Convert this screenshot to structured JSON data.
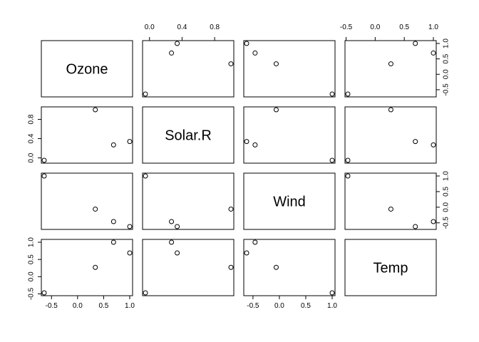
{
  "chart_data": {
    "type": "scatter-matrix",
    "variables": [
      "Ozone",
      "Solar.R",
      "Wind",
      "Temp"
    ],
    "observations": [
      {
        "Ozone": -0.64,
        "Solar.R": -0.05,
        "Wind": 1.0,
        "Temp": -0.47
      },
      {
        "Ozone": 0.34,
        "Solar.R": 1.0,
        "Wind": -0.06,
        "Temp": 0.27
      },
      {
        "Ozone": 0.69,
        "Solar.R": 0.27,
        "Wind": -0.46,
        "Temp": 1.0
      },
      {
        "Ozone": 1.0,
        "Solar.R": 0.34,
        "Wind": -0.62,
        "Temp": 0.69
      }
    ],
    "ranges": {
      "Ozone": [
        -0.64,
        1.0
      ],
      "Solar.R": [
        -0.05,
        1.0
      ],
      "Wind": [
        -0.62,
        1.0
      ],
      "Temp": [
        -0.47,
        1.0
      ]
    },
    "ticks": {
      "Ozone": [
        -0.5,
        0.0,
        0.5,
        1.0
      ],
      "Solar.R": [
        0.0,
        0.4,
        0.8
      ],
      "Wind": [
        -0.5,
        0.0,
        0.5,
        1.0
      ],
      "Temp": [
        -0.5,
        0.0,
        0.5,
        1.0
      ]
    },
    "tick_labels": {
      "Ozone": [
        "-0.5",
        "0.0",
        "0.5",
        "1.0"
      ],
      "Solar.R": [
        "0.0",
        "0.4",
        "0.8"
      ],
      "Wind": [
        "-0.5",
        "0.0",
        "0.5",
        "1.0"
      ],
      "Temp": [
        "-0.5",
        "0.0",
        "0.5",
        "1.0"
      ]
    },
    "axis_sides": {
      "top_columns": [
        1,
        3
      ],
      "bottom_columns": [
        0,
        2
      ],
      "left_rows": [
        1,
        3
      ],
      "right_rows": [
        0,
        2
      ]
    },
    "marker": "open-circle",
    "grid": false
  }
}
